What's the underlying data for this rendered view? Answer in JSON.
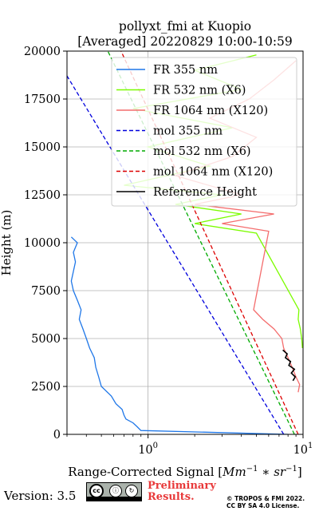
{
  "chart_data": {
    "type": "line",
    "title_line1": "pollyxt_fmi at Kuopio",
    "title_line2": "[Averaged] 20220829 10:00-10:59",
    "xlabel": "Range-Corrected Signal [Mm^-1 * sr^-1]",
    "ylabel": "Height (m)",
    "xscale": "log",
    "xlim": [
      0.3,
      10
    ],
    "ylim": [
      0,
      20000
    ],
    "xticks": [
      {
        "value": 1,
        "label": "10^0"
      },
      {
        "value": 10,
        "label": "10^1"
      }
    ],
    "yticks": [
      0,
      2500,
      5000,
      7500,
      10000,
      12500,
      15000,
      17500,
      20000
    ],
    "grid": true,
    "legend_position": "top-right",
    "series": [
      {
        "name": "FR 355 nm",
        "color": "#1f77e8",
        "style": "solid",
        "height": [
          0,
          200,
          400,
          600,
          800,
          1000,
          1300,
          1600,
          2000,
          2500,
          3000,
          3500,
          4000,
          4500,
          5000,
          5500,
          6000,
          6500,
          7000,
          7500,
          8000,
          8500,
          9000,
          9500,
          10000,
          10300
        ],
        "signal": [
          8.0,
          0.9,
          0.85,
          0.8,
          0.72,
          0.7,
          0.68,
          0.62,
          0.58,
          0.5,
          0.48,
          0.46,
          0.45,
          0.42,
          0.4,
          0.38,
          0.36,
          0.37,
          0.35,
          0.33,
          0.32,
          0.33,
          0.34,
          0.33,
          0.35,
          0.32
        ]
      },
      {
        "name": "FR 532 nm (X6)",
        "color": "#7cfc00",
        "style": "solid",
        "height": [
          4500,
          5000,
          5500,
          6000,
          6500,
          10500,
          11000,
          11500,
          12000,
          12500,
          13000,
          14000,
          15000,
          16000,
          17000,
          18000,
          19000,
          19800
        ],
        "signal": [
          9.9,
          9.8,
          9.6,
          9.3,
          9.4,
          5.0,
          2.0,
          4.0,
          1.5,
          3.0,
          0.7,
          2.5,
          1.0,
          3.5,
          0.8,
          4.0,
          2.0,
          5.0
        ]
      },
      {
        "name": "FR 1064 nm (X120)",
        "color": "#f46d6d",
        "style": "solid",
        "height": [
          2200,
          2600,
          3000,
          3500,
          4000,
          4500,
          5000,
          5500,
          6000,
          6500,
          10600,
          11000,
          11500,
          12000,
          12500,
          13500,
          14500,
          15500,
          16500,
          17500,
          18500,
          19500
        ],
        "signal": [
          9.3,
          9.5,
          9.0,
          8.5,
          8.0,
          7.5,
          7.3,
          6.5,
          5.5,
          4.8,
          6.0,
          3.0,
          6.5,
          2.0,
          4.0,
          1.5,
          3.5,
          5.0,
          2.5,
          4.5,
          6.5,
          9.0
        ]
      },
      {
        "name": "mol 355 nm",
        "color": "#0000dd",
        "style": "dashed",
        "height": [
          0,
          20000
        ],
        "signal": [
          7.5,
          0.24
        ]
      },
      {
        "name": "mol 532 nm (X6)",
        "color": "#00aa00",
        "style": "dashed",
        "height": [
          0,
          20000
        ],
        "signal": [
          8.8,
          0.55
        ]
      },
      {
        "name": "mol 1064 nm (X120)",
        "color": "#dd0000",
        "style": "dashed",
        "height": [
          0,
          20000
        ],
        "signal": [
          9.3,
          0.67
        ]
      },
      {
        "name": "Reference Height",
        "color": "#000000",
        "style": "solid",
        "height": [
          2800,
          3000,
          3200,
          3400,
          3600,
          3800,
          4000,
          4200,
          4400
        ],
        "signal": [
          8.6,
          8.9,
          8.4,
          8.8,
          8.1,
          8.3,
          7.7,
          7.9,
          7.4
        ]
      }
    ]
  },
  "footer": {
    "version": "Version: 3.5",
    "license_icon": "cc-by-sa-badge",
    "preliminary_line1": "Preliminary",
    "preliminary_line2": "Results.",
    "copyright_line1": "© TROPOS & FMI 2022.",
    "copyright_line2": "CC BY SA 4.0 License."
  }
}
